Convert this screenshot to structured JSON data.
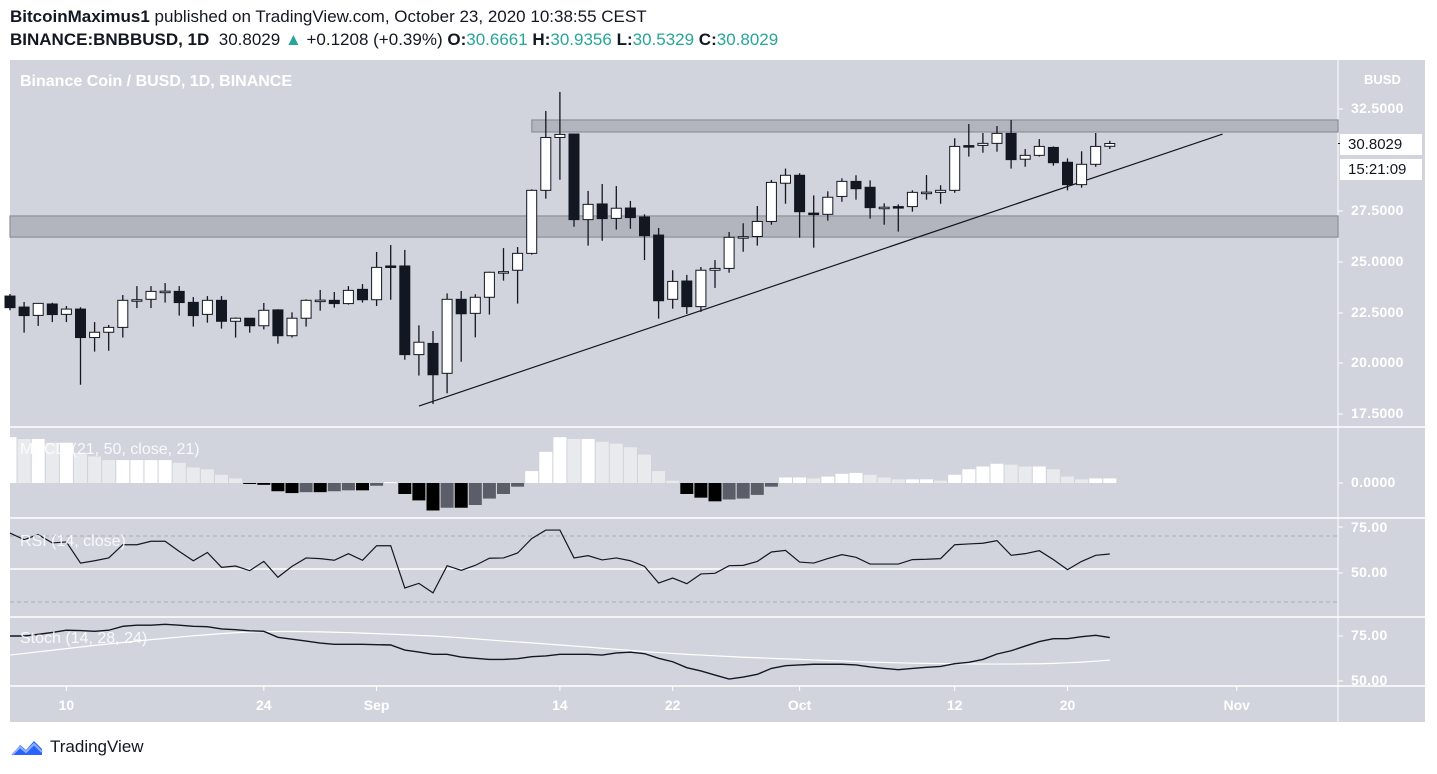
{
  "header": {
    "author": "BitcoinMaximus1",
    "published_text": "published on TradingView.com, October 23, 2020 10:38:55 CEST",
    "symbol": "BINANCE:BNBBUSD, 1D",
    "last": "30.8029",
    "change": "+0.1208 (+0.39%)",
    "o_label": "O:",
    "o": "30.6661",
    "h_label": "H:",
    "h": "30.9356",
    "l_label": "L:",
    "l": "30.5329",
    "c_label": "C:",
    "c": "30.8029",
    "up_color": "#26a69a"
  },
  "chart_data": {
    "type": "candlestick",
    "title": "Binance Coin / BUSD, 1D, BINANCE",
    "currency": "BUSD",
    "price_ticks": [
      "32.5000",
      "27.5000",
      "25.0000",
      "22.5000",
      "20.0000",
      "17.5000"
    ],
    "last_price_label": "30.8029",
    "countdown": "15:21:09",
    "x_ticks": [
      {
        "label": "10",
        "date": "2020-08-10"
      },
      {
        "label": "24",
        "date": "2020-08-24"
      },
      {
        "label": "Sep",
        "date": "2020-09-01"
      },
      {
        "label": "14",
        "date": "2020-09-14"
      },
      {
        "label": "22",
        "date": "2020-09-22"
      },
      {
        "label": "Oct",
        "date": "2020-10-01"
      },
      {
        "label": "12",
        "date": "2020-10-12"
      },
      {
        "label": "20",
        "date": "2020-10-20"
      },
      {
        "label": "Nov",
        "date": "2020-11-01"
      }
    ],
    "candle_fields": [
      "date",
      "open",
      "high",
      "low",
      "close"
    ],
    "candles": [
      [
        "2020-08-06",
        23.3,
        23.4,
        22.6,
        22.73
      ],
      [
        "2020-08-07",
        22.76,
        23.01,
        21.5,
        22.34
      ],
      [
        "2020-08-08",
        22.35,
        22.94,
        21.83,
        22.94
      ],
      [
        "2020-08-09",
        22.91,
        22.97,
        22.02,
        22.39
      ],
      [
        "2020-08-10",
        22.4,
        22.81,
        22.02,
        22.66
      ],
      [
        "2020-08-11",
        22.66,
        22.75,
        18.94,
        21.26
      ],
      [
        "2020-08-12",
        21.26,
        22.02,
        20.57,
        21.52
      ],
      [
        "2020-08-13",
        21.52,
        21.88,
        20.61,
        21.76
      ],
      [
        "2020-08-14",
        21.76,
        23.35,
        21.26,
        23.09
      ],
      [
        "2020-08-15",
        23.09,
        23.79,
        22.71,
        23.12
      ],
      [
        "2020-08-16",
        23.14,
        23.79,
        22.71,
        23.53
      ],
      [
        "2020-08-17",
        23.53,
        23.94,
        22.98,
        23.54
      ],
      [
        "2020-08-18",
        23.53,
        23.79,
        22.34,
        22.98
      ],
      [
        "2020-08-19",
        22.99,
        23.25,
        21.8,
        22.34
      ],
      [
        "2020-08-20",
        22.4,
        23.3,
        21.99,
        23.09
      ],
      [
        "2020-08-21",
        23.09,
        23.3,
        21.7,
        22.06
      ],
      [
        "2020-08-22",
        22.06,
        22.25,
        21.26,
        22.21
      ],
      [
        "2020-08-23",
        22.21,
        22.21,
        21.5,
        21.84
      ],
      [
        "2020-08-24",
        21.84,
        22.96,
        21.66,
        22.6
      ],
      [
        "2020-08-25",
        22.62,
        22.65,
        20.96,
        21.35
      ],
      [
        "2020-08-26",
        21.35,
        22.5,
        21.26,
        22.21
      ],
      [
        "2020-08-27",
        22.21,
        23.14,
        21.8,
        23.09
      ],
      [
        "2020-08-28",
        23.09,
        23.6,
        22.58,
        23.1
      ],
      [
        "2020-08-29",
        23.09,
        23.5,
        22.73,
        22.93
      ],
      [
        "2020-08-30",
        22.93,
        23.79,
        22.88,
        23.58
      ],
      [
        "2020-08-31",
        23.63,
        23.89,
        22.98,
        23.12
      ],
      [
        "2020-09-01",
        23.12,
        25.47,
        22.81,
        24.71
      ],
      [
        "2020-09-02",
        24.78,
        25.81,
        23.12,
        24.71
      ],
      [
        "2020-09-03",
        24.78,
        25.57,
        20.17,
        20.42
      ],
      [
        "2020-09-04",
        20.42,
        21.86,
        19.39,
        21.03
      ],
      [
        "2020-09-05",
        20.97,
        21.58,
        17.99,
        19.43
      ],
      [
        "2020-09-06",
        19.5,
        23.43,
        18.52,
        23.14
      ],
      [
        "2020-09-07",
        23.14,
        23.55,
        20.07,
        22.43
      ],
      [
        "2020-09-08",
        22.45,
        23.39,
        21.27,
        23.24
      ],
      [
        "2020-09-09",
        23.24,
        24.5,
        22.39,
        24.47
      ],
      [
        "2020-09-10",
        24.49,
        25.66,
        24.06,
        24.5
      ],
      [
        "2020-09-11",
        24.57,
        25.71,
        22.93,
        25.4
      ],
      [
        "2020-09-12",
        25.4,
        28.55,
        25.34,
        28.5
      ],
      [
        "2020-09-13",
        28.5,
        32.4,
        28.09,
        31.1
      ],
      [
        "2020-09-14",
        31.1,
        33.34,
        29.02,
        31.25
      ],
      [
        "2020-09-15",
        31.27,
        31.27,
        26.71,
        27.06
      ],
      [
        "2020-09-16",
        27.06,
        28.47,
        25.78,
        27.81
      ],
      [
        "2020-09-17",
        27.83,
        28.81,
        26.02,
        27.11
      ],
      [
        "2020-09-18",
        27.12,
        28.71,
        26.57,
        27.62
      ],
      [
        "2020-09-19",
        27.63,
        27.98,
        26.61,
        27.16
      ],
      [
        "2020-09-20",
        27.19,
        27.32,
        25.07,
        26.27
      ],
      [
        "2020-09-21",
        26.3,
        26.65,
        22.19,
        23.07
      ],
      [
        "2020-09-22",
        23.14,
        24.57,
        22.68,
        24.02
      ],
      [
        "2020-09-23",
        24.04,
        24.34,
        22.42,
        22.78
      ],
      [
        "2020-09-24",
        22.78,
        24.73,
        22.52,
        24.57
      ],
      [
        "2020-09-25",
        24.57,
        25.07,
        23.7,
        24.66
      ],
      [
        "2020-09-26",
        24.66,
        26.45,
        24.45,
        26.19
      ],
      [
        "2020-09-27",
        26.19,
        26.88,
        25.48,
        26.22
      ],
      [
        "2020-09-28",
        26.23,
        27.73,
        25.78,
        26.97
      ],
      [
        "2020-09-29",
        26.97,
        29.01,
        26.81,
        28.89
      ],
      [
        "2020-09-30",
        28.85,
        29.57,
        27.84,
        29.24
      ],
      [
        "2020-10-01",
        29.24,
        29.34,
        26.17,
        27.45
      ],
      [
        "2020-10-02",
        27.38,
        28.25,
        25.68,
        27.37
      ],
      [
        "2020-10-03",
        27.32,
        28.45,
        27.01,
        28.16
      ],
      [
        "2020-10-04",
        28.2,
        29.09,
        27.94,
        28.94
      ],
      [
        "2020-10-05",
        28.94,
        29.24,
        28.04,
        28.58
      ],
      [
        "2020-10-06",
        28.65,
        28.99,
        27.11,
        27.65
      ],
      [
        "2020-10-07",
        27.66,
        27.86,
        26.81,
        27.67
      ],
      [
        "2020-10-08",
        27.7,
        27.81,
        26.47,
        27.64
      ],
      [
        "2020-10-09",
        27.7,
        28.5,
        27.45,
        28.4
      ],
      [
        "2020-10-10",
        28.4,
        29.25,
        28.04,
        28.41
      ],
      [
        "2020-10-11",
        28.4,
        28.75,
        27.84,
        28.5
      ],
      [
        "2020-10-12",
        28.5,
        31.06,
        28.38,
        30.66
      ],
      [
        "2020-10-13",
        30.7,
        31.76,
        30.16,
        30.66
      ],
      [
        "2020-10-14",
        30.71,
        31.32,
        30.35,
        30.81
      ],
      [
        "2020-10-15",
        30.81,
        31.66,
        30.4,
        31.3
      ],
      [
        "2020-10-16",
        31.3,
        31.96,
        29.57,
        30.01
      ],
      [
        "2020-10-17",
        30.03,
        30.53,
        29.66,
        30.22
      ],
      [
        "2020-10-18",
        30.22,
        31.02,
        30.16,
        30.66
      ],
      [
        "2020-10-19",
        30.61,
        30.66,
        29.71,
        29.86
      ],
      [
        "2020-10-20",
        29.88,
        30.07,
        28.5,
        28.78
      ],
      [
        "2020-10-21",
        28.78,
        30.42,
        28.63,
        29.78
      ],
      [
        "2020-10-22",
        29.78,
        31.32,
        29.66,
        30.66
      ],
      [
        "2020-10-23",
        30.6661,
        30.9356,
        30.5329,
        30.8029
      ]
    ],
    "zones": [
      {
        "from_date": "2020-09-13",
        "top": 31.96,
        "bottom": 31.37
      },
      {
        "from_date": "2020-08-06",
        "top": 27.24,
        "bottom": 26.2
      }
    ],
    "trendline": [
      [
        "2020-09-04",
        17.89
      ],
      [
        "2020-10-31",
        31.27
      ]
    ],
    "colors": {
      "up_body": "#ffffff",
      "down_body": "#131722",
      "wick": "#131722",
      "background": "#d1d4dc",
      "zone": "#b2b5be"
    },
    "indicators": {
      "macd": {
        "label": "MACD (21, 50, close, 21)",
        "tick": "0.0000",
        "histogram": [
          1.0,
          0.96,
          0.96,
          0.88,
          0.88,
          0.66,
          0.58,
          0.5,
          0.5,
          0.5,
          0.5,
          0.5,
          0.44,
          0.34,
          0.3,
          0.18,
          0.1,
          -0.02,
          -0.04,
          -0.18,
          -0.22,
          -0.2,
          -0.2,
          -0.18,
          -0.16,
          -0.16,
          -0.06,
          0.02,
          -0.24,
          -0.38,
          -0.6,
          -0.54,
          -0.54,
          -0.48,
          -0.34,
          -0.24,
          -0.08,
          0.26,
          0.68,
          1.0,
          0.96,
          0.96,
          0.9,
          0.86,
          0.78,
          0.62,
          0.26,
          0.05,
          -0.24,
          -0.32,
          -0.4,
          -0.36,
          -0.34,
          -0.26,
          -0.08,
          0.12,
          0.12,
          0.1,
          0.14,
          0.2,
          0.22,
          0.18,
          0.12,
          0.08,
          0.08,
          0.08,
          0.05,
          0.18,
          0.3,
          0.36,
          0.42,
          0.4,
          0.36,
          0.36,
          0.3,
          0.14,
          0.08,
          0.1,
          0.1
        ]
      },
      "rsi": {
        "label": "RSI (14, close)",
        "ticks": [
          "75.00",
          "50.00"
        ],
        "bands": [
          70,
          30
        ],
        "values": [
          71.8,
          67.8,
          70.8,
          65.8,
          66.4,
          53.6,
          55,
          56.7,
          64.7,
          64.7,
          66.8,
          66.8,
          60.7,
          55,
          60,
          51,
          51.8,
          49,
          54.6,
          45,
          51.6,
          56.7,
          56.3,
          55.3,
          59.3,
          55.3,
          64.1,
          64.1,
          38.5,
          41.3,
          35.5,
          52,
          49.2,
          52.2,
          56.5,
          56.7,
          59.7,
          68.4,
          73.6,
          73.6,
          56.7,
          58.1,
          55.5,
          56.7,
          55,
          51.6,
          41.5,
          44.5,
          41.1,
          47,
          47.4,
          52,
          52.2,
          54.6,
          60.3,
          61.3,
          54.2,
          53.6,
          56.3,
          58.7,
          57.1,
          53,
          53,
          53,
          55.7,
          55.9,
          56.3,
          64.7,
          65.2,
          65.6,
          67.2,
          58.3,
          59.3,
          61.1,
          55.7,
          49.6,
          54.6,
          58.3,
          59.1
        ]
      },
      "stoch": {
        "label": "Stoch (14, 28, 24)",
        "ticks": [
          "75.00",
          "50.00"
        ],
        "k": [
          75,
          75,
          75.9,
          77,
          78.2,
          78,
          77.6,
          78.2,
          80.4,
          81,
          81,
          81.5,
          81,
          80.4,
          80.2,
          78.9,
          78.5,
          77.9,
          77.6,
          74.3,
          73.2,
          72.2,
          71.1,
          70.4,
          70.4,
          70.4,
          70.2,
          70,
          67.2,
          66.1,
          64.8,
          64.8,
          63.3,
          62.6,
          62,
          62,
          62.4,
          63.5,
          63.9,
          64.8,
          64.8,
          64.8,
          64.4,
          65.6,
          66,
          65.2,
          62.6,
          60.7,
          57.4,
          55.6,
          53.3,
          51.1,
          52.2,
          53.7,
          57,
          58.5,
          58.9,
          59.3,
          59.3,
          59.3,
          58.9,
          57.8,
          57,
          56.3,
          57,
          57.6,
          58.1,
          59.6,
          60.4,
          62,
          65,
          66.8,
          69.4,
          71.9,
          73.5,
          73.5,
          74.6,
          75.4,
          74.1
        ],
        "d": [
          64.4,
          65.3,
          66.2,
          67.1,
          68,
          68.9,
          69.8,
          70.6,
          71.4,
          72.2,
          73,
          73.7,
          74.4,
          75.1,
          75.7,
          76.3,
          76.8,
          77.2,
          77.4,
          77.5,
          77.5,
          77.4,
          77.3,
          77.1,
          76.9,
          76.6,
          76.3,
          76,
          75.7,
          75.3,
          75,
          74.5,
          74,
          73.4,
          72.8,
          72.2,
          71.7,
          71.2,
          70.6,
          70,
          69.4,
          68.8,
          68.2,
          67.6,
          67,
          66.3,
          65.8,
          65.3,
          64.8,
          64.4,
          64,
          63.6,
          63.2,
          62.9,
          62.6,
          62.3,
          62,
          61.7,
          61.4,
          61.1,
          60.8,
          60.5,
          60.3,
          60.1,
          59.9,
          59.8,
          59.7,
          59.6,
          59.5,
          59.4,
          59.4,
          59.4,
          59.5,
          59.6,
          59.8,
          60.1,
          60.5,
          61,
          61.6
        ]
      }
    }
  },
  "footer": {
    "brand": "TradingView",
    "logo_color": "#2962ff"
  }
}
